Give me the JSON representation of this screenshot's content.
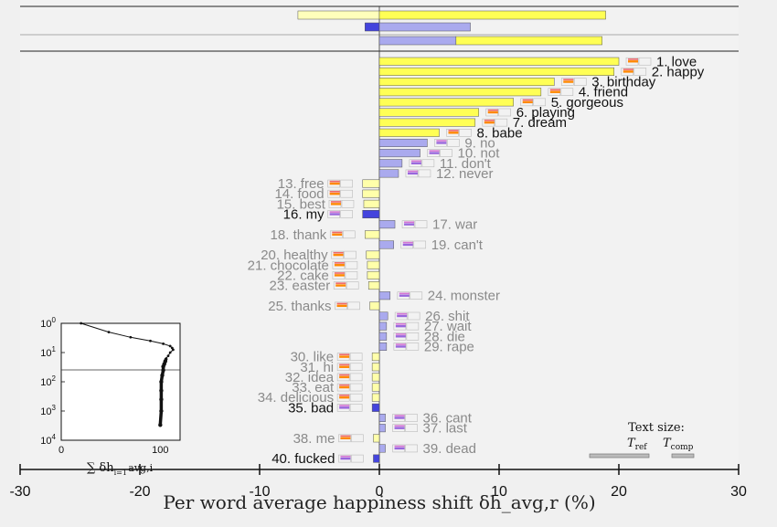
{
  "chart_data": {
    "type": "bar",
    "xlabel": "Per word average happiness shift δh_avg,r (%)",
    "xlim": [
      -30,
      30
    ],
    "xticks": [
      "-30",
      "-20",
      "-10",
      "0",
      "10",
      "20",
      "30"
    ],
    "colors": {
      "pos_up": "#ffff55",
      "pos_up_light": "#ffffbb",
      "neg_down": "#aaaaee",
      "neg_down_strong": "#4444dd",
      "pos_down": "#ffffaa",
      "neg_up": "#aaaaee"
    },
    "summary_bars": [
      {
        "segments": [
          {
            "from": -6.8,
            "to": 0,
            "color": "pos_up_light"
          },
          {
            "from": 0,
            "to": 18.9,
            "color": "pos_up"
          }
        ]
      },
      {
        "segments": [
          {
            "from": -1.2,
            "to": 0,
            "color": "neg_down_strong"
          },
          {
            "from": 0,
            "to": 7.6,
            "color": "neg_down"
          }
        ]
      },
      {
        "segments": [
          {
            "from": 0,
            "to": 6.4,
            "color": "neg_down"
          },
          {
            "from": 6.4,
            "to": 18.6,
            "color": "pos_up"
          }
        ]
      }
    ],
    "words": [
      {
        "rank": 1,
        "label": "1. love",
        "value": 20.0,
        "type": "pos_up",
        "dark": true
      },
      {
        "rank": 2,
        "label": "2. happy",
        "value": 19.6,
        "type": "pos_up",
        "dark": true
      },
      {
        "rank": 3,
        "label": "3. birthday",
        "value": 14.6,
        "type": "pos_up",
        "dark": true
      },
      {
        "rank": 4,
        "label": "4. friend",
        "value": 13.5,
        "type": "pos_up",
        "dark": true
      },
      {
        "rank": 5,
        "label": "5. gorgeous",
        "value": 11.2,
        "type": "pos_up",
        "dark": true
      },
      {
        "rank": 6,
        "label": "6. playing",
        "value": 8.3,
        "type": "pos_up",
        "dark": true
      },
      {
        "rank": 7,
        "label": "7. dream",
        "value": 8.0,
        "type": "pos_up",
        "dark": true
      },
      {
        "rank": 8,
        "label": "8. babe",
        "value": 5.0,
        "type": "pos_up",
        "dark": true
      },
      {
        "rank": 9,
        "label": "9. no",
        "value": 4.0,
        "type": "neg_down",
        "dark": false
      },
      {
        "rank": 10,
        "label": "10. not",
        "value": 3.4,
        "type": "neg_down",
        "dark": false
      },
      {
        "rank": 11,
        "label": "11. don't",
        "value": 1.9,
        "type": "neg_down",
        "dark": false
      },
      {
        "rank": 12,
        "label": "12. never",
        "value": 1.6,
        "type": "neg_down",
        "dark": false
      },
      {
        "rank": 13,
        "label": "13. free",
        "value": -1.4,
        "type": "pos_down",
        "dark": false
      },
      {
        "rank": 14,
        "label": "14. food",
        "value": -1.4,
        "type": "pos_down",
        "dark": false
      },
      {
        "rank": 15,
        "label": "15. best",
        "value": -1.3,
        "type": "pos_down",
        "dark": false
      },
      {
        "rank": 16,
        "label": "16. my",
        "value": -1.4,
        "type": "neg_down_strong",
        "dark": true
      },
      {
        "rank": 17,
        "label": "17. war",
        "value": 1.3,
        "type": "neg_up",
        "dark": false
      },
      {
        "rank": 18,
        "label": "18. thank",
        "value": -1.2,
        "type": "pos_down",
        "dark": false
      },
      {
        "rank": 19,
        "label": "19. can't",
        "value": 1.2,
        "type": "neg_up",
        "dark": false
      },
      {
        "rank": 20,
        "label": "20. healthy",
        "value": -1.1,
        "type": "pos_down",
        "dark": false
      },
      {
        "rank": 21,
        "label": "21. chocolate",
        "value": -1.0,
        "type": "pos_down",
        "dark": false
      },
      {
        "rank": 22,
        "label": "22. cake",
        "value": -1.0,
        "type": "pos_down",
        "dark": false
      },
      {
        "rank": 23,
        "label": "23. easter",
        "value": -0.9,
        "type": "pos_down",
        "dark": false
      },
      {
        "rank": 24,
        "label": "24. monster",
        "value": 0.9,
        "type": "neg_up",
        "dark": false
      },
      {
        "rank": 25,
        "label": "25. thanks",
        "value": -0.8,
        "type": "pos_down",
        "dark": false
      },
      {
        "rank": 26,
        "label": "26. shit",
        "value": 0.7,
        "type": "neg_up",
        "dark": false
      },
      {
        "rank": 27,
        "label": "27. wait",
        "value": 0.6,
        "type": "neg_up",
        "dark": false
      },
      {
        "rank": 28,
        "label": "28. die",
        "value": 0.6,
        "type": "neg_up",
        "dark": false
      },
      {
        "rank": 29,
        "label": "29. rape",
        "value": 0.6,
        "type": "neg_up",
        "dark": false
      },
      {
        "rank": 30,
        "label": "30. like",
        "value": -0.6,
        "type": "pos_down",
        "dark": false
      },
      {
        "rank": 31,
        "label": "31. hi",
        "value": -0.6,
        "type": "pos_down",
        "dark": false
      },
      {
        "rank": 32,
        "label": "32. idea",
        "value": -0.6,
        "type": "pos_down",
        "dark": false
      },
      {
        "rank": 33,
        "label": "33. eat",
        "value": -0.6,
        "type": "pos_down",
        "dark": false
      },
      {
        "rank": 34,
        "label": "34. delicious",
        "value": -0.6,
        "type": "pos_down",
        "dark": false
      },
      {
        "rank": 35,
        "label": "35. bad",
        "value": -0.6,
        "type": "neg_down_strong",
        "dark": true
      },
      {
        "rank": 36,
        "label": "36. cant",
        "value": 0.5,
        "type": "neg_up",
        "dark": false
      },
      {
        "rank": 37,
        "label": "37. last",
        "value": 0.5,
        "type": "neg_up",
        "dark": false
      },
      {
        "rank": 38,
        "label": "38. me",
        "value": -0.5,
        "type": "pos_down",
        "dark": false
      },
      {
        "rank": 39,
        "label": "39. dead",
        "value": 0.5,
        "type": "neg_up",
        "dark": false
      },
      {
        "rank": 40,
        "label": "40. fucked",
        "value": -0.5,
        "type": "neg_down_strong",
        "dark": true
      }
    ],
    "inset": {
      "type": "line",
      "xticks": [
        "0",
        "100"
      ],
      "yticks": [
        "10",
        "10",
        "10",
        "10",
        "10"
      ],
      "ytick_exponents": [
        "0",
        "1",
        "2",
        "3",
        "4"
      ],
      "xlabel": "∑ δh",
      "xlabel_sub": "i=1",
      "xlabel_sup": "r",
      "xlabel_tail": "avg,i",
      "xlim": [
        0,
        120
      ],
      "points": [
        [
          20,
          1
        ],
        [
          48,
          2
        ],
        [
          70,
          3
        ],
        [
          90,
          4
        ],
        [
          103,
          5
        ],
        [
          110,
          6
        ],
        [
          112,
          7
        ],
        [
          113,
          8
        ],
        [
          110,
          10
        ],
        [
          108,
          13
        ],
        [
          106,
          16
        ],
        [
          105,
          20
        ],
        [
          104,
          25
        ],
        [
          103,
          30
        ],
        [
          103,
          40
        ],
        [
          102,
          60
        ],
        [
          101,
          100
        ],
        [
          101,
          200
        ],
        [
          101,
          400
        ],
        [
          101,
          1000
        ],
        [
          100,
          3000
        ]
      ],
      "hline_y": 4
    },
    "legend": {
      "title": "Text size:",
      "ref_label": "T",
      "ref_sub": "ref",
      "comp_label": "T",
      "comp_sub": "comp"
    }
  }
}
